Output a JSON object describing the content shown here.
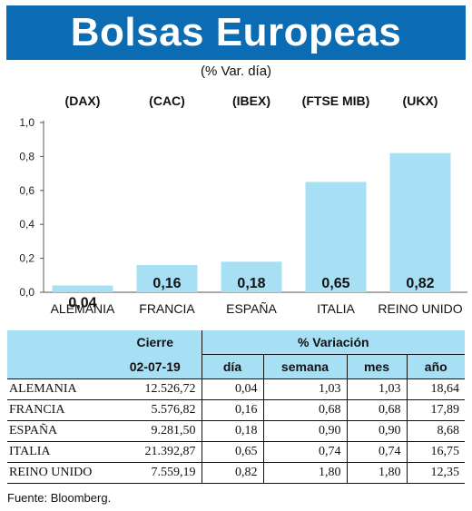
{
  "header": {
    "title": "Bolsas Europeas",
    "subtitle": "(% Var. día)"
  },
  "chart_data": {
    "type": "bar",
    "indices": [
      "(DAX)",
      "(CAC)",
      "(IBEX)",
      "(FTSE MIB)",
      "(UKX)"
    ],
    "categories": [
      "ALEMANIA",
      "FRANCIA",
      "ESPAÑA",
      "ITALIA",
      "REINO UNIDO"
    ],
    "values": [
      0.04,
      0.16,
      0.18,
      0.65,
      0.82
    ],
    "value_labels": [
      "0,04",
      "0,16",
      "0,18",
      "0,65",
      "0,82"
    ],
    "ylim": [
      0,
      1.0
    ],
    "yticks": [
      "0,0",
      "0,2",
      "0,4",
      "0,6",
      "0,8",
      "1,0"
    ],
    "bar_color": "#a7e0f5",
    "grid": false
  },
  "table": {
    "col_header_cierre": "Cierre",
    "col_header_variacion": "% Variación",
    "date": "02-07-19",
    "sub_headers": [
      "día",
      "semana",
      "mes",
      "año"
    ],
    "rows": [
      {
        "name": "ALEMANIA",
        "cierre": "12.526,72",
        "dia": "0,04",
        "semana": "1,03",
        "mes": "1,03",
        "ano": "18,64"
      },
      {
        "name": "FRANCIA",
        "cierre": "5.576,82",
        "dia": "0,16",
        "semana": "0,68",
        "mes": "0,68",
        "ano": "17,89"
      },
      {
        "name": "ESPAÑA",
        "cierre": "9.281,50",
        "dia": "0,18",
        "semana": "0,90",
        "mes": "0,90",
        "ano": "8,68"
      },
      {
        "name": "ITALIA",
        "cierre": "21.392,87",
        "dia": "0,65",
        "semana": "0,74",
        "mes": "0,74",
        "ano": "16,75"
      },
      {
        "name": "REINO UNIDO",
        "cierre": "7.559,19",
        "dia": "0,82",
        "semana": "1,80",
        "mes": "1,80",
        "ano": "12,35"
      }
    ]
  },
  "footer": {
    "source": "Fuente: Bloomberg."
  }
}
